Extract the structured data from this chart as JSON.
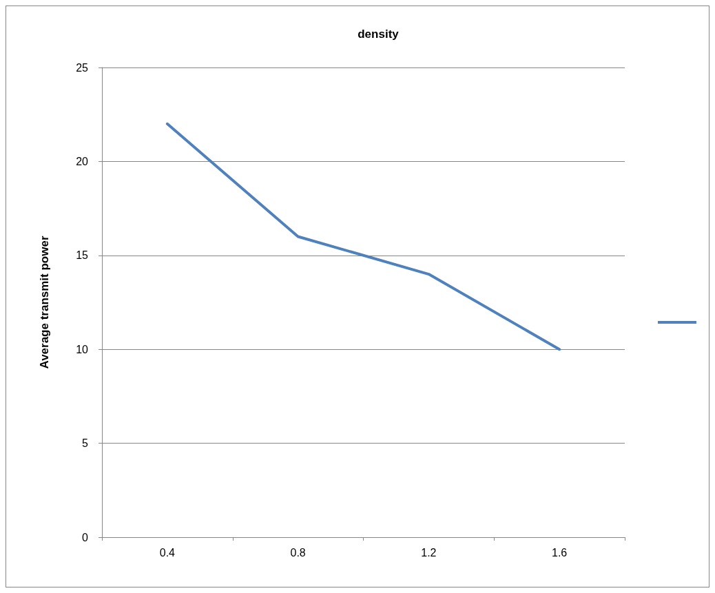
{
  "chart_data": {
    "type": "line",
    "title": "density",
    "ylabel": "Average transmit power",
    "categories": [
      "0.4",
      "0.8",
      "1.2",
      "1.6"
    ],
    "series": [
      {
        "color": "#4f81bd",
        "values": [
          22,
          16,
          14,
          10
        ]
      }
    ],
    "ylim": [
      0,
      25
    ],
    "yticks": [
      0,
      5,
      10,
      15,
      20,
      25
    ],
    "grid": "y",
    "marker": "none"
  }
}
